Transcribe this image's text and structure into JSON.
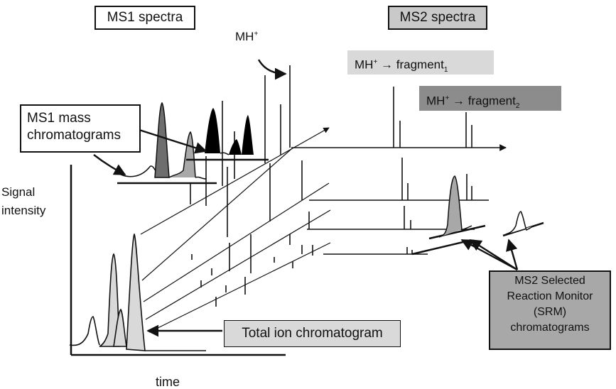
{
  "headers": {
    "ms1": "MS1 spectra",
    "ms2": "MS2 spectra"
  },
  "precursor": {
    "label": "MH",
    "sup": "+"
  },
  "transitions": [
    {
      "from": "MH",
      "sup": "+",
      "arrow": " → ",
      "to": "fragment",
      "sub": "1"
    },
    {
      "from": "MH",
      "sup": "+",
      "arrow": " → ",
      "to": "fragment",
      "sub": "2"
    }
  ],
  "callouts": {
    "xic": [
      "MS1 mass",
      "chromatograms"
    ],
    "tic": "Total ion chromatogram",
    "srm": [
      "MS2 Selected",
      "Reaction Monitor",
      "(SRM)",
      "chromatograms"
    ]
  },
  "axes": {
    "y_label": [
      "Signal",
      "intensity"
    ],
    "x_label": "time"
  },
  "colors": {
    "ink": "#111111",
    "light_fill": "#d9d9d9",
    "mid_fill": "#a8a8a8",
    "dark_fill": "#8c8c8c",
    "black_fill": "#000000"
  },
  "icons": [
    "arrow-icon"
  ]
}
